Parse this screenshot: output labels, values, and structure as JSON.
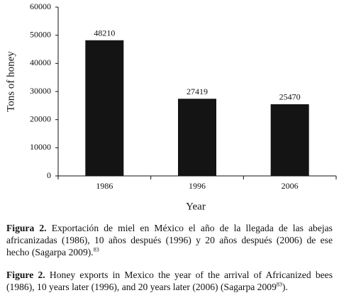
{
  "chart_data": {
    "type": "bar",
    "categories": [
      "1986",
      "1996",
      "2006"
    ],
    "values": [
      48210,
      27419,
      25470
    ],
    "color": "#141414",
    "xlabel": "Year",
    "ylabel": "Tons of honey",
    "ylim": [
      0,
      60000
    ],
    "yticks": [
      0,
      10000,
      20000,
      30000,
      40000,
      50000,
      60000
    ]
  },
  "captions": [
    {
      "label": "Figura 2.",
      "text": "Exportación de miel en México el año de la llegada de las abejas africanizadas (1986), 10 años después (1996) y 20 años después (2006) de ese hecho (Sagarpa 2009).",
      "ref": "83"
    },
    {
      "label": "Figure 2.",
      "text": "Honey exports in Mexico the year of the arrival of Africanized bees (1986), 10 years later (1996), and 20 years later (2006) (Sagarpa 2009",
      "ref": "83",
      "tail": ")."
    }
  ]
}
